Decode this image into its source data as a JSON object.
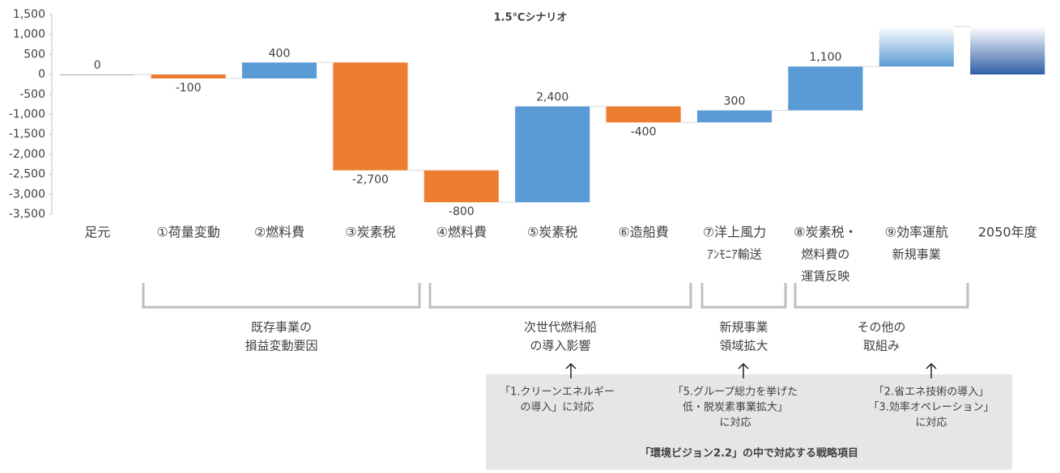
{
  "chart_data": {
    "type": "waterfall",
    "title": "1.5℃シナリオ",
    "categories": [
      [
        "足元"
      ],
      [
        "①荷量変動"
      ],
      [
        "②燃料費"
      ],
      [
        "③炭素税"
      ],
      [
        "④燃料費"
      ],
      [
        "⑤炭素税"
      ],
      [
        "⑥造船費"
      ],
      [
        "⑦洋上風力",
        "ｱﾝﾓﾆｱ輸送"
      ],
      [
        "⑧炭素税・",
        "燃料費の",
        "運賃反映"
      ],
      [
        "⑨効率運航",
        "新規事業"
      ],
      [
        "2050年度"
      ]
    ],
    "values": [
      0,
      -100,
      400,
      -2700,
      -800,
      2400,
      -400,
      300,
      1100,
      1000,
      1200
    ],
    "value_labels": [
      "0",
      "-100",
      "400",
      "-2,700",
      "-800",
      "2,400",
      "-400",
      "300",
      "1,100",
      null,
      null
    ],
    "colors": [
      "#a5a5a5",
      "#ed7d31",
      "#5b9bd5",
      "#ed7d31",
      "#ed7d31",
      "#5b9bd5",
      "#ed7d31",
      "#5b9bd5",
      "#5b9bd5",
      "#5b9bd5",
      "#2f5fa8"
    ],
    "gradient": [
      false,
      false,
      false,
      false,
      false,
      false,
      false,
      false,
      false,
      true,
      true
    ],
    "total_index": 10,
    "ylim": [
      -3500,
      1500
    ],
    "yticks": [
      {
        "value": 1500,
        "label": "1,500"
      },
      {
        "value": 1000,
        "label": "1,000"
      },
      500,
      0,
      -500,
      {
        "value": -1000,
        "label": "-1,000"
      },
      {
        "value": -1500,
        "label": "-1,500"
      },
      {
        "value": -2000,
        "label": "-2,000"
      },
      {
        "value": -2500,
        "label": "-2,500"
      },
      {
        "value": -3000,
        "label": "-3,000"
      },
      {
        "value": -3500,
        "label": "-3,500"
      }
    ]
  },
  "groups": [
    {
      "lines": [
        "既存事業の",
        "損益変動要因"
      ]
    },
    {
      "lines": [
        "次世代燃料船",
        "の導入影響"
      ]
    },
    {
      "lines": [
        "新規事業",
        "領域拡大"
      ]
    },
    {
      "lines": [
        "その他の",
        "取組み"
      ]
    }
  ],
  "strategy_box": {
    "items": [
      {
        "lines": [
          "「1.クリーンエネルギー",
          "の導入」に対応"
        ]
      },
      {
        "lines": [
          "「5.グループ総力を挙げた",
          "低・脱炭素事業拡大」",
          "に対応"
        ]
      },
      {
        "lines": [
          "「2.省エネ技術の導入」",
          "「3.効率オペレーション」",
          "に対応"
        ]
      }
    ],
    "footer": "「環境ビジョン2.2」の中で対応する戦略項目"
  }
}
